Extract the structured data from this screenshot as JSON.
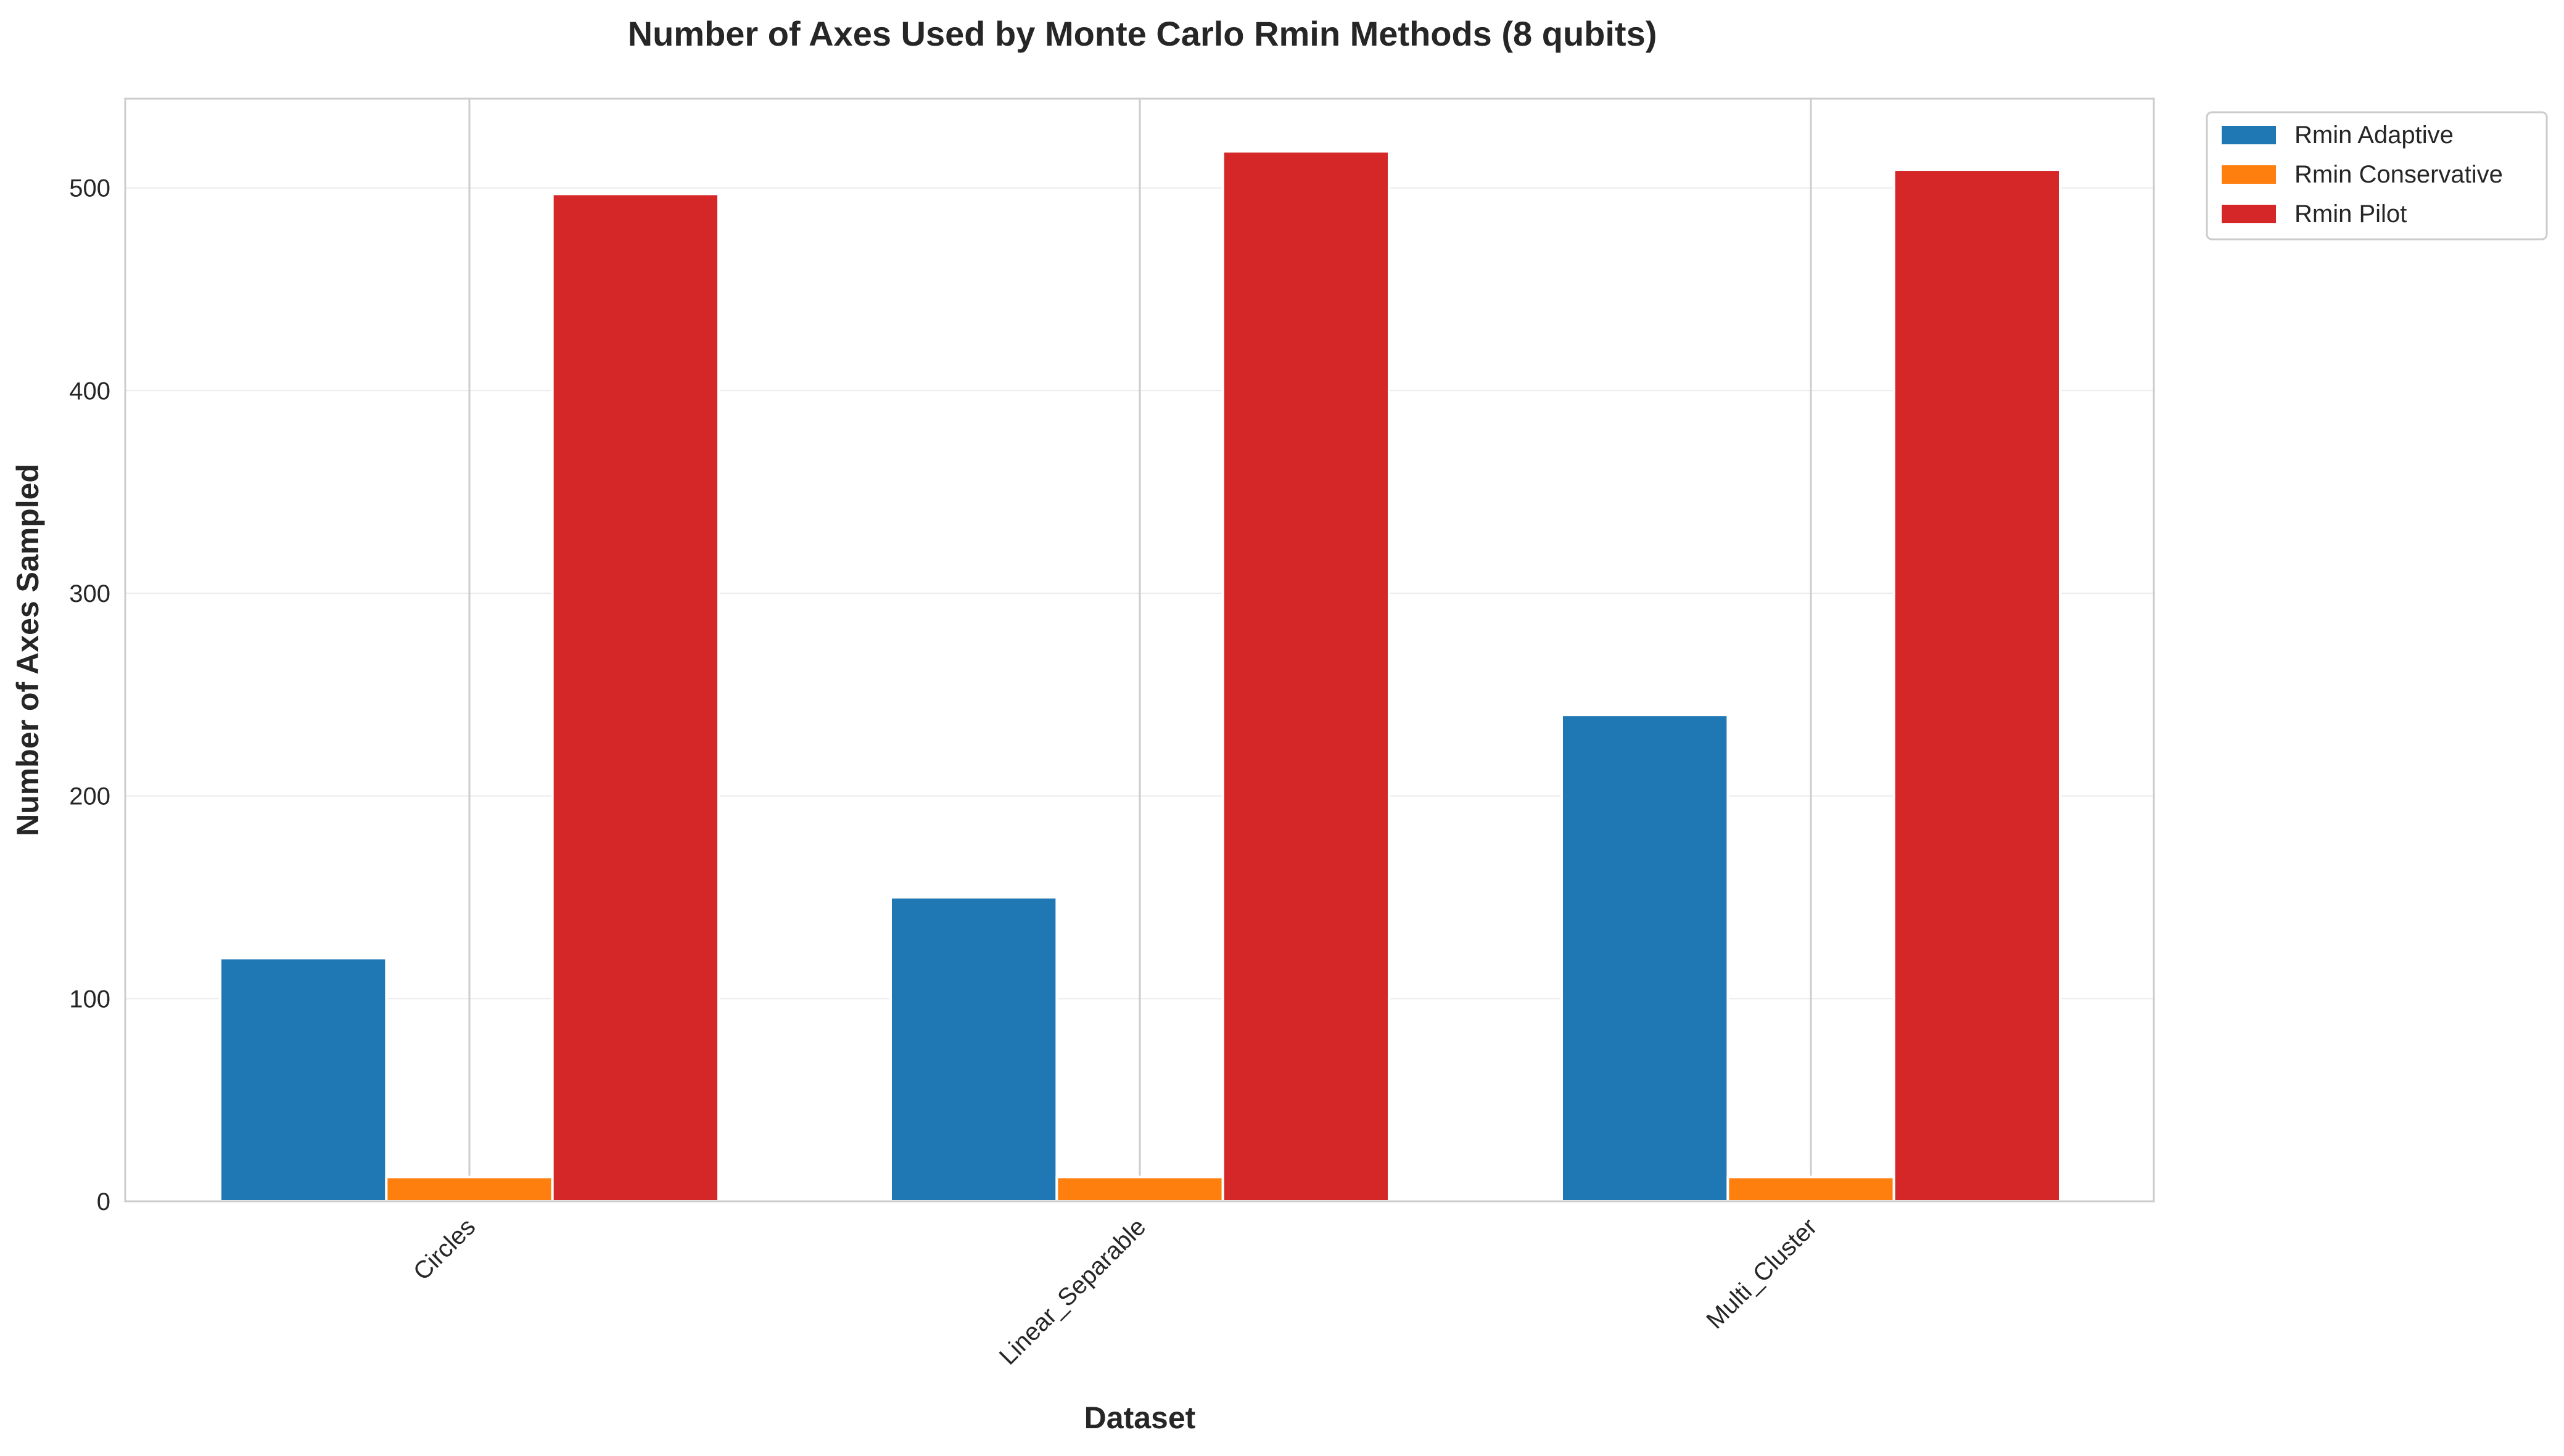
{
  "chart_data": {
    "type": "bar",
    "title": "Number of Axes Used by Monte Carlo Rmin Methods (8 qubits)",
    "xlabel": "Dataset",
    "ylabel": "Number of Axes Sampled",
    "categories": [
      "Circles",
      "Linear_Separable",
      "Multi_Cluster"
    ],
    "series": [
      {
        "name": "Rmin Adaptive",
        "color": "#1f77b4",
        "values": [
          120,
          150,
          240
        ]
      },
      {
        "name": "Rmin Conservative",
        "color": "#ff7f0e",
        "values": [
          12,
          12,
          12
        ]
      },
      {
        "name": "Rmin Pilot",
        "color": "#d62728",
        "values": [
          497,
          518,
          509
        ]
      }
    ],
    "ylim": [
      0,
      544
    ],
    "yticks": [
      0,
      100,
      200,
      300,
      400,
      500
    ],
    "grid": true,
    "legend_position": "outside-top-right"
  }
}
